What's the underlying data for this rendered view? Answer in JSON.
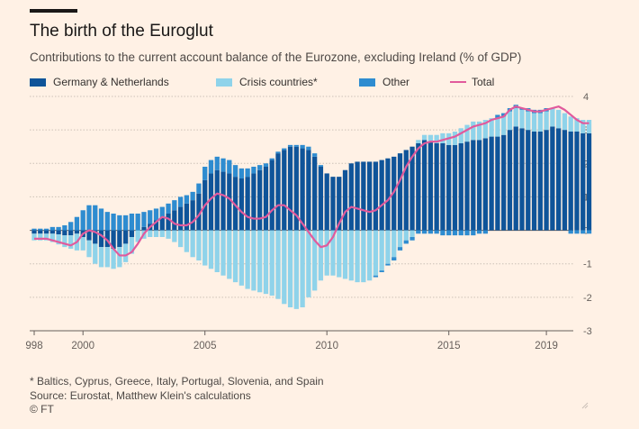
{
  "header": {
    "title": "The birth of the Euroglut",
    "subtitle": "Contributions to the current account balance of the Eurozone, excluding Ireland (% of GDP)"
  },
  "footer": {
    "note": "* Baltics, Cyprus, Greece, Italy, Portugal, Slovenia, and Spain",
    "source": "Source: Eurostat, Matthew Klein's calculations",
    "copyright": "© FT"
  },
  "colors": {
    "germany": "#0f5499",
    "crisis": "#8fd3ea",
    "other": "#2e8cd0",
    "total": "#e15a9c",
    "background": "#fff1e5"
  },
  "chart_data": {
    "type": "bar",
    "stacked": true,
    "legend": [
      "Germany & Netherlands",
      "Crisis countries*",
      "Other",
      "Total"
    ],
    "legend_position": "top",
    "ylim": [
      -3,
      4
    ],
    "yticks": [
      "4",
      "3",
      "2",
      "1",
      "0",
      "-1",
      "-2",
      "-3"
    ],
    "xticks": [
      "998",
      "2000",
      "2005",
      "2010",
      "2015",
      "2019"
    ],
    "x_start": 1998.0,
    "x_step": 0.25,
    "germany": [
      -0.1,
      -0.1,
      -0.1,
      -0.1,
      -0.12,
      -0.15,
      -0.15,
      -0.1,
      -0.2,
      -0.3,
      -0.4,
      -0.5,
      -0.5,
      -0.55,
      -0.5,
      -0.4,
      -0.2,
      0.0,
      0.1,
      0.2,
      0.3,
      0.4,
      0.5,
      0.6,
      0.7,
      0.8,
      0.9,
      1.1,
      1.5,
      1.7,
      1.8,
      1.75,
      1.7,
      1.6,
      1.55,
      1.6,
      1.7,
      1.8,
      1.9,
      2.1,
      2.3,
      2.4,
      2.5,
      2.5,
      2.45,
      2.4,
      2.2,
      1.9,
      1.7,
      1.6,
      1.6,
      1.8,
      2.0,
      2.05,
      2.05,
      2.05,
      2.05,
      2.1,
      2.15,
      2.2,
      2.3,
      2.4,
      2.5,
      2.6,
      2.7,
      2.65,
      2.6,
      2.6,
      2.55,
      2.55,
      2.6,
      2.65,
      2.7,
      2.7,
      2.75,
      2.8,
      2.8,
      2.85,
      3.0,
      3.1,
      3.05,
      3.0,
      2.95,
      2.95,
      3.0,
      3.1,
      3.05,
      3.0,
      2.95,
      2.95,
      2.9,
      2.9
    ],
    "crisis": [
      -0.2,
      -0.2,
      -0.2,
      -0.25,
      -0.3,
      -0.35,
      -0.4,
      -0.5,
      -0.4,
      -0.5,
      -0.6,
      -0.6,
      -0.6,
      -0.6,
      -0.6,
      -0.55,
      -0.5,
      -0.35,
      -0.25,
      -0.2,
      -0.2,
      -0.2,
      -0.25,
      -0.35,
      -0.5,
      -0.65,
      -0.8,
      -0.9,
      -1.05,
      -1.15,
      -1.25,
      -1.35,
      -1.45,
      -1.55,
      -1.65,
      -1.75,
      -1.8,
      -1.85,
      -1.9,
      -1.95,
      -2.05,
      -2.2,
      -2.3,
      -2.35,
      -2.3,
      -2.0,
      -1.8,
      -1.5,
      -1.35,
      -1.35,
      -1.4,
      -1.45,
      -1.5,
      -1.55,
      -1.55,
      -1.5,
      -1.35,
      -1.2,
      -1.0,
      -0.8,
      -0.5,
      -0.3,
      -0.2,
      0.1,
      0.15,
      0.2,
      0.25,
      0.3,
      0.35,
      0.4,
      0.45,
      0.5,
      0.55,
      0.55,
      0.55,
      0.55,
      0.55,
      0.55,
      0.55,
      0.55,
      0.55,
      0.55,
      0.55,
      0.55,
      0.55,
      0.55,
      0.55,
      0.5,
      0.45,
      0.4,
      0.4,
      0.4
    ],
    "other": [
      0.05,
      0.05,
      0.05,
      0.1,
      0.1,
      0.15,
      0.25,
      0.4,
      0.6,
      0.75,
      0.75,
      0.65,
      0.55,
      0.5,
      0.45,
      0.45,
      0.5,
      0.5,
      0.45,
      0.4,
      0.35,
      0.3,
      0.3,
      0.3,
      0.3,
      0.25,
      0.25,
      0.3,
      0.4,
      0.4,
      0.4,
      0.4,
      0.4,
      0.35,
      0.3,
      0.25,
      0.2,
      0.15,
      0.1,
      0.05,
      0.05,
      0.05,
      0.05,
      0.05,
      0.1,
      0.1,
      0.1,
      0.05,
      0.0,
      0.0,
      0.0,
      0.0,
      0.0,
      0.0,
      0.0,
      0.0,
      -0.05,
      -0.05,
      -0.05,
      -0.1,
      -0.1,
      -0.1,
      -0.1,
      -0.1,
      -0.1,
      -0.1,
      -0.1,
      -0.15,
      -0.15,
      -0.15,
      -0.15,
      -0.15,
      -0.15,
      -0.1,
      -0.1,
      0.0,
      0.1,
      0.1,
      0.1,
      0.1,
      0.05,
      0.1,
      0.1,
      0.1,
      0.1,
      0.0,
      0.0,
      0.0,
      -0.1,
      -0.1,
      -0.1,
      -0.1
    ],
    "total": [
      -0.25,
      -0.25,
      -0.25,
      -0.3,
      -0.35,
      -0.4,
      -0.45,
      -0.35,
      -0.1,
      0.0,
      -0.05,
      -0.15,
      -0.3,
      -0.55,
      -0.75,
      -0.75,
      -0.65,
      -0.4,
      -0.1,
      0.1,
      0.25,
      0.4,
      0.35,
      0.2,
      0.15,
      0.15,
      0.25,
      0.45,
      0.75,
      0.95,
      1.1,
      1.05,
      0.95,
      0.75,
      0.55,
      0.4,
      0.35,
      0.35,
      0.4,
      0.6,
      0.75,
      0.75,
      0.6,
      0.45,
      0.2,
      -0.05,
      -0.3,
      -0.5,
      -0.45,
      -0.2,
      0.2,
      0.55,
      0.7,
      0.65,
      0.6,
      0.55,
      0.6,
      0.75,
      0.9,
      1.15,
      1.5,
      1.9,
      2.2,
      2.45,
      2.6,
      2.65,
      2.65,
      2.7,
      2.75,
      2.8,
      2.9,
      3.0,
      3.1,
      3.15,
      3.2,
      3.3,
      3.35,
      3.4,
      3.6,
      3.7,
      3.65,
      3.6,
      3.55,
      3.55,
      3.6,
      3.65,
      3.7,
      3.6,
      3.45,
      3.3,
      3.2,
      3.2
    ]
  }
}
